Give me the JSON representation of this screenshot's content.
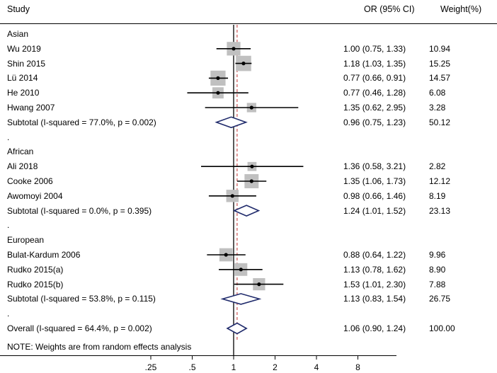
{
  "headers": {
    "study": "Study",
    "or": "OR (95% CI)",
    "weight": "Weight(%)"
  },
  "footnote": "NOTE: Weights are from random effects analysis",
  "colors": {
    "line": "#000000",
    "diamond": "#1f2a6b",
    "box": "#c0c0c0",
    "dashed": "#c03030"
  },
  "chart_data": {
    "type": "forest",
    "x_scale": "log",
    "x_ticks": [
      ".25",
      ".5",
      "1",
      "2",
      "4",
      "8"
    ],
    "null_value": 1,
    "overall_estimate": 1.06,
    "rows": [
      {
        "kind": "group",
        "label": "Asian"
      },
      {
        "kind": "study",
        "label": "Wu 2019",
        "or": 1.0,
        "lo": 0.75,
        "hi": 1.33,
        "or_text": "1.00 (0.75, 1.33)",
        "weight": "10.94"
      },
      {
        "kind": "study",
        "label": "Shin 2015",
        "or": 1.18,
        "lo": 1.03,
        "hi": 1.35,
        "or_text": "1.18 (1.03, 1.35)",
        "weight": "15.25"
      },
      {
        "kind": "study",
        "label": "Lü 2014",
        "or": 0.77,
        "lo": 0.66,
        "hi": 0.91,
        "or_text": "0.77 (0.66, 0.91)",
        "weight": "14.57"
      },
      {
        "kind": "study",
        "label": "He 2010",
        "or": 0.77,
        "lo": 0.46,
        "hi": 1.28,
        "or_text": "0.77 (0.46, 1.28)",
        "weight": "6.08"
      },
      {
        "kind": "study",
        "label": "Hwang 2007",
        "or": 1.35,
        "lo": 0.62,
        "hi": 2.95,
        "or_text": "1.35 (0.62, 2.95)",
        "weight": "3.28"
      },
      {
        "kind": "subtotal",
        "label": "Subtotal  (I-squared = 77.0%, p = 0.002)",
        "or": 0.96,
        "lo": 0.75,
        "hi": 1.23,
        "or_text": "0.96 (0.75, 1.23)",
        "weight": "50.12"
      },
      {
        "kind": "dot",
        "label": "."
      },
      {
        "kind": "group",
        "label": "African"
      },
      {
        "kind": "study",
        "label": "Ali 2018",
        "or": 1.36,
        "lo": 0.58,
        "hi": 3.21,
        "or_text": "1.36 (0.58, 3.21)",
        "weight": "2.82"
      },
      {
        "kind": "study",
        "label": "Cooke 2006",
        "or": 1.35,
        "lo": 1.06,
        "hi": 1.73,
        "or_text": "1.35 (1.06, 1.73)",
        "weight": "12.12"
      },
      {
        "kind": "study",
        "label": "Awomoyi 2004",
        "or": 0.98,
        "lo": 0.66,
        "hi": 1.46,
        "or_text": "0.98 (0.66, 1.46)",
        "weight": "8.19"
      },
      {
        "kind": "subtotal",
        "label": "Subtotal  (I-squared = 0.0%, p = 0.395)",
        "or": 1.24,
        "lo": 1.01,
        "hi": 1.52,
        "or_text": "1.24 (1.01, 1.52)",
        "weight": "23.13"
      },
      {
        "kind": "dot",
        "label": "."
      },
      {
        "kind": "group",
        "label": "European"
      },
      {
        "kind": "study",
        "label": "Bulat-Kardum 2006",
        "or": 0.88,
        "lo": 0.64,
        "hi": 1.22,
        "or_text": "0.88 (0.64, 1.22)",
        "weight": "9.96"
      },
      {
        "kind": "study",
        "label": "Rudko 2015(a)",
        "or": 1.13,
        "lo": 0.78,
        "hi": 1.62,
        "or_text": "1.13 (0.78, 1.62)",
        "weight": "8.90"
      },
      {
        "kind": "study",
        "label": "Rudko 2015(b)",
        "or": 1.53,
        "lo": 1.01,
        "hi": 2.3,
        "or_text": "1.53 (1.01, 2.30)",
        "weight": "7.88"
      },
      {
        "kind": "subtotal",
        "label": "Subtotal  (I-squared = 53.8%, p = 0.115)",
        "or": 1.13,
        "lo": 0.83,
        "hi": 1.54,
        "or_text": "1.13 (0.83, 1.54)",
        "weight": "26.75"
      },
      {
        "kind": "dot",
        "label": "."
      },
      {
        "kind": "overall",
        "label": "Overall  (I-squared = 64.4%, p = 0.002)",
        "or": 1.06,
        "lo": 0.9,
        "hi": 1.24,
        "or_text": "1.06 (0.90, 1.24)",
        "weight": "100.00"
      }
    ]
  }
}
